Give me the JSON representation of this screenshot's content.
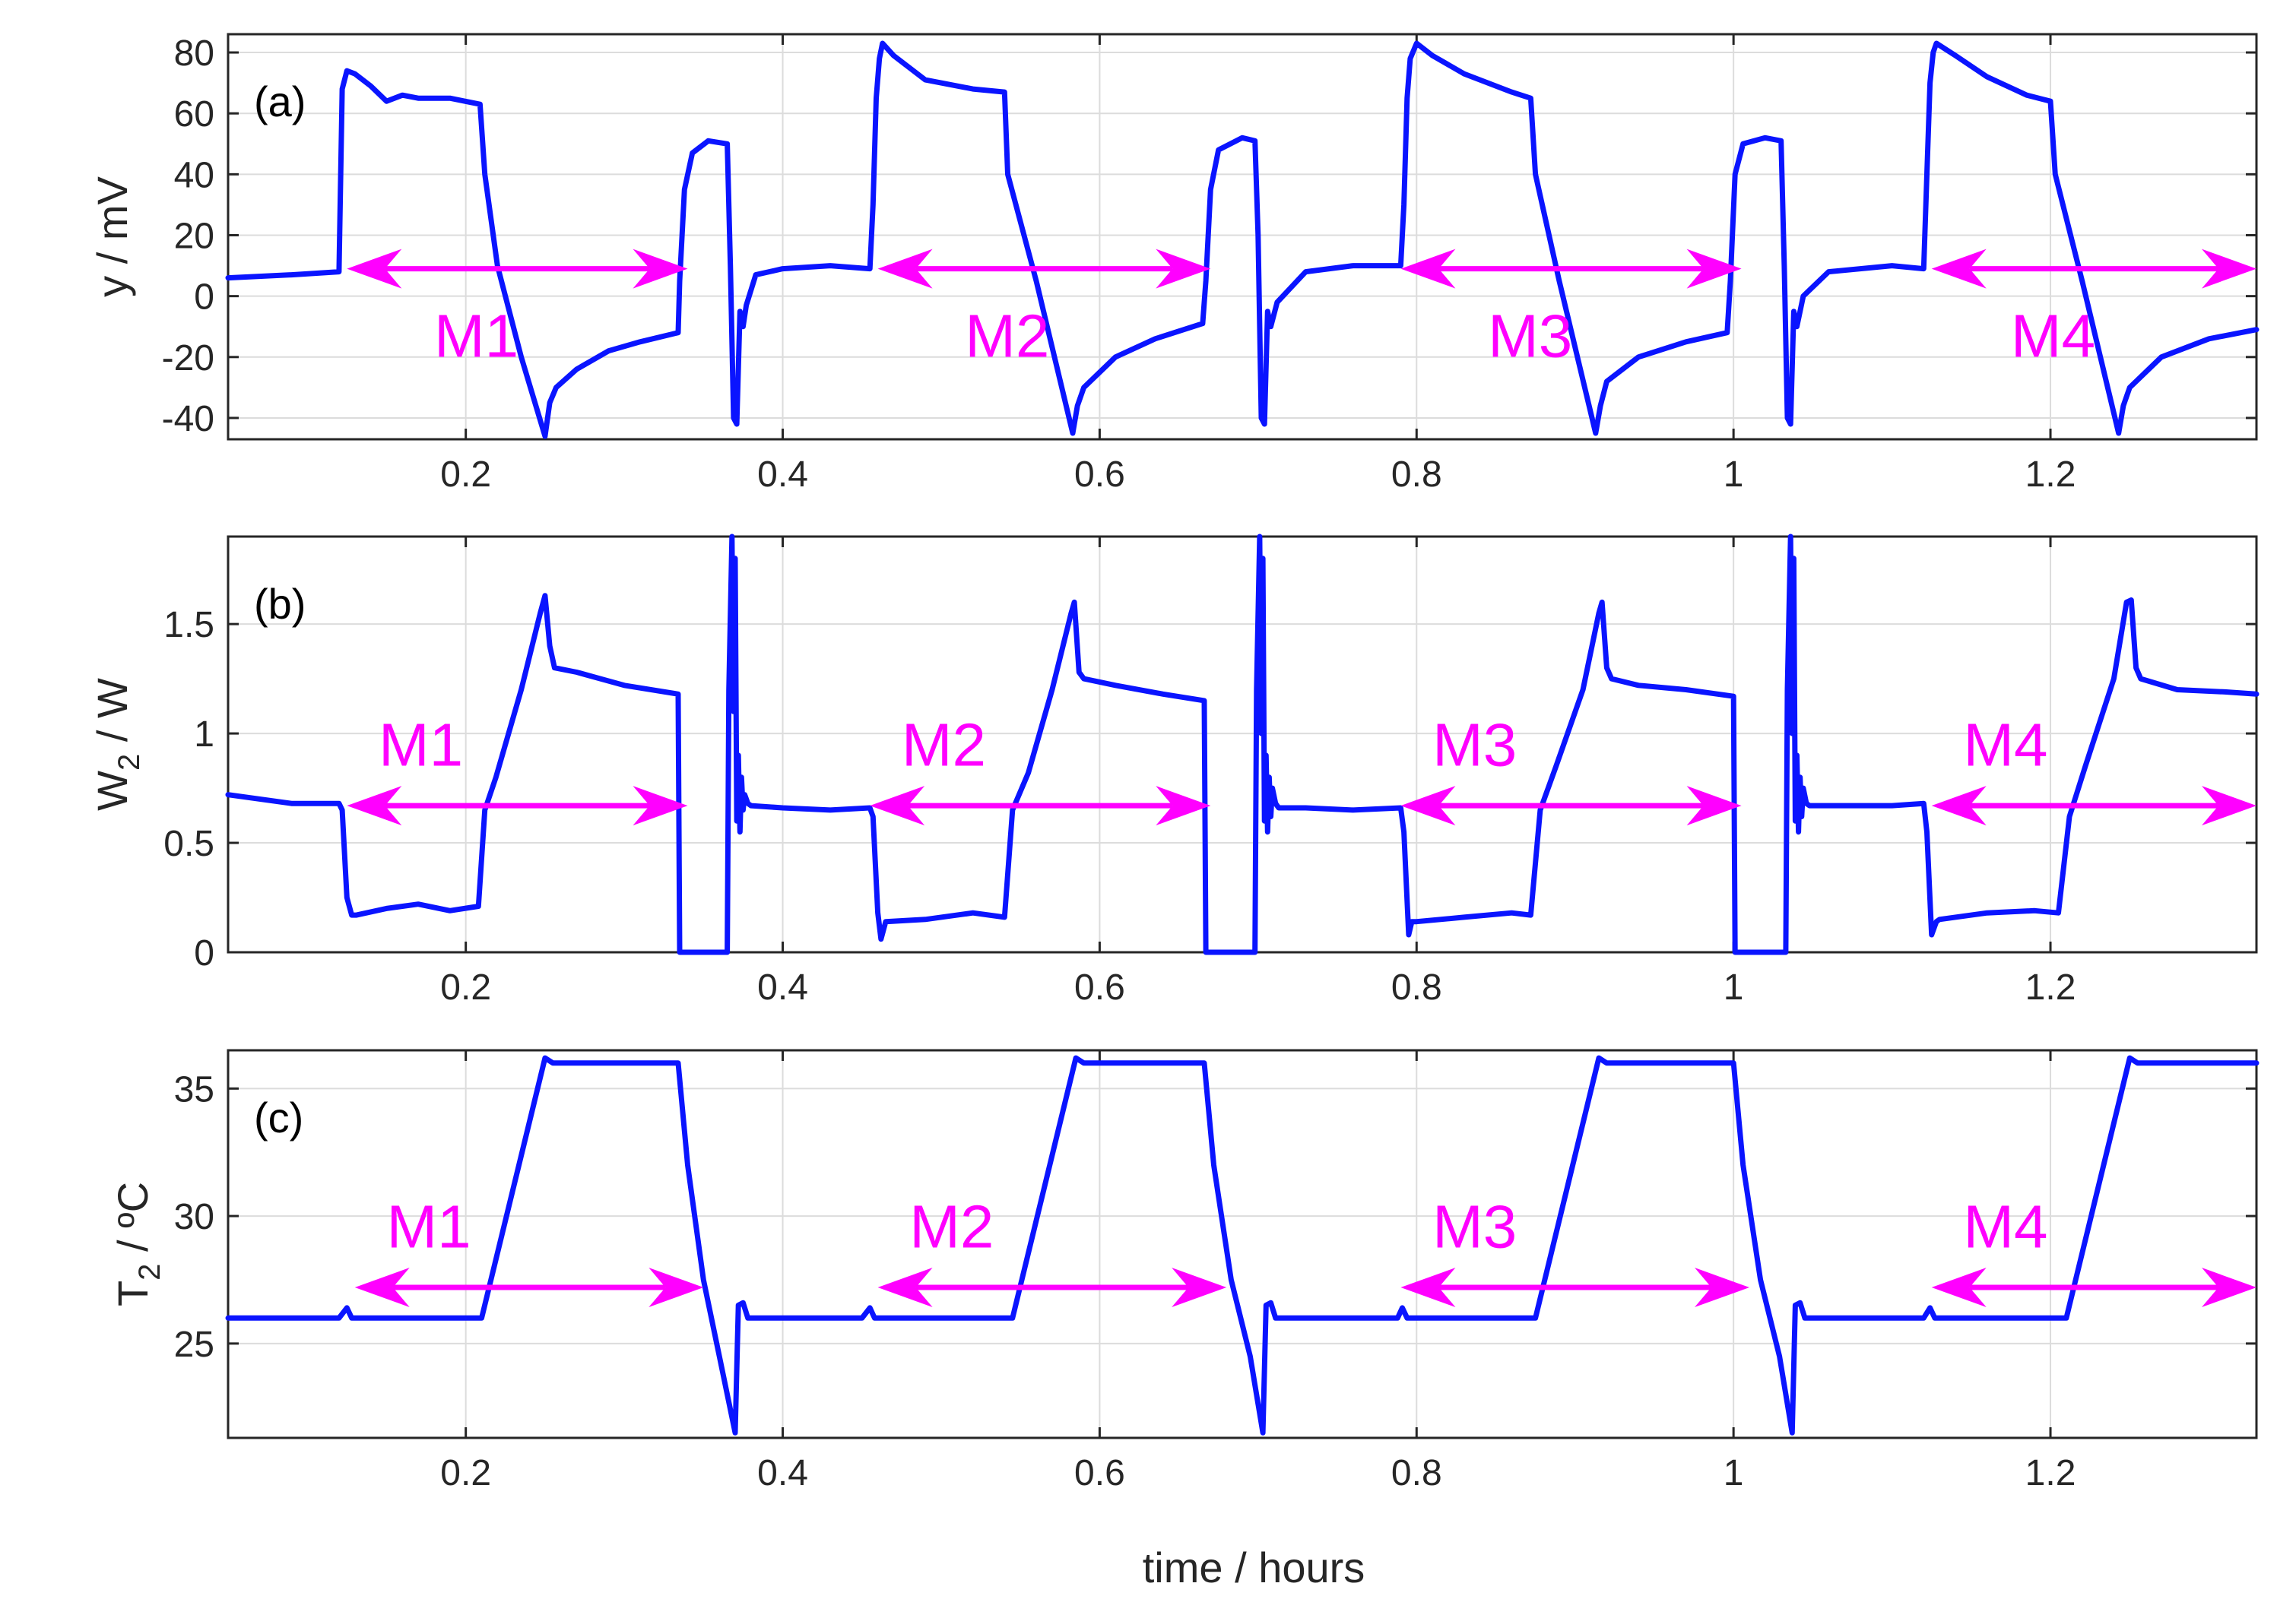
{
  "figure": {
    "xlabel": "time / hours",
    "colors": {
      "line": "#0a14ff",
      "annotation": "#ff00ff",
      "axis": "#262626",
      "grid": "#dcdcdc"
    }
  },
  "chart_data": [
    {
      "type": "line",
      "panel_tag": "(a)",
      "ylabel": "y / mV",
      "xlabel": "",
      "xlim": [
        0.05,
        1.33
      ],
      "ylim": [
        -47,
        86
      ],
      "xticks": [
        0.2,
        0.4,
        0.6,
        0.8,
        1.0,
        1.2
      ],
      "xtick_labels": [
        "0.2",
        "0.4",
        "0.6",
        "0.8",
        "1",
        "1.2"
      ],
      "yticks": [
        -40,
        -20,
        0,
        20,
        40,
        60,
        80
      ],
      "ytick_labels": [
        "-40",
        "-20",
        "0",
        "20",
        "40",
        "60",
        "80"
      ],
      "grid": true,
      "series": [
        {
          "x": [
            0.05,
            0.09,
            0.12,
            0.122,
            0.125,
            0.13,
            0.14,
            0.15,
            0.16,
            0.17,
            0.19,
            0.209,
            0.212,
            0.22,
            0.235,
            0.25,
            0.253,
            0.257,
            0.27,
            0.29,
            0.31,
            0.334,
            0.335,
            0.338,
            0.343,
            0.353,
            0.365,
            0.367,
            0.369,
            0.371,
            0.373,
            0.375,
            0.377,
            0.383,
            0.4,
            0.43,
            0.455,
            0.457,
            0.459,
            0.461,
            0.463,
            0.47,
            0.49,
            0.52,
            0.54,
            0.542,
            0.56,
            0.583,
            0.586,
            0.59,
            0.61,
            0.635,
            0.665,
            0.667,
            0.67,
            0.675,
            0.69,
            0.698,
            0.7,
            0.702,
            0.704,
            0.706,
            0.708,
            0.712,
            0.73,
            0.76,
            0.79,
            0.792,
            0.794,
            0.796,
            0.8,
            0.81,
            0.83,
            0.86,
            0.872,
            0.875,
            0.89,
            0.913,
            0.916,
            0.92,
            0.94,
            0.97,
            0.996,
            0.998,
            1.001,
            1.006,
            1.02,
            1.03,
            1.032,
            1.034,
            1.036,
            1.038,
            1.04,
            1.044,
            1.06,
            1.1,
            1.12,
            1.122,
            1.124,
            1.126,
            1.128,
            1.14,
            1.16,
            1.185,
            1.2,
            1.203,
            1.22,
            1.243,
            1.246,
            1.25,
            1.27,
            1.3,
            1.33
          ],
          "y": [
            6,
            7,
            8,
            68,
            74,
            73,
            69,
            64,
            66,
            65,
            65,
            63,
            40,
            10,
            -20,
            -46,
            -35,
            -30,
            -24,
            -18,
            -15,
            -12,
            5,
            35,
            47,
            51,
            50,
            10,
            -40,
            -42,
            -5,
            -10,
            -3,
            7,
            9,
            10,
            9,
            30,
            65,
            78,
            83,
            79,
            71,
            68,
            67,
            40,
            5,
            -45,
            -36,
            -30,
            -20,
            -14,
            -9,
            5,
            35,
            48,
            52,
            51,
            20,
            -40,
            -42,
            -5,
            -10,
            -2,
            8,
            10,
            10,
            30,
            65,
            78,
            83,
            79,
            73,
            67,
            65,
            40,
            5,
            -45,
            -36,
            -28,
            -20,
            -15,
            -12,
            5,
            40,
            50,
            52,
            51,
            10,
            -40,
            -42,
            -5,
            -10,
            0,
            8,
            10,
            9,
            40,
            70,
            80,
            83,
            79,
            72,
            66,
            64,
            40,
            5,
            -45,
            -36,
            -30,
            -20,
            -14,
            -11
          ]
        }
      ],
      "annotations": [
        {
          "label": "M1",
          "x_start": 0.125,
          "x_end": 0.34,
          "y": 9,
          "label_x": 0.18,
          "label_y": -13
        },
        {
          "label": "M2",
          "x_start": 0.46,
          "x_end": 0.67,
          "y": 9,
          "label_x": 0.515,
          "label_y": -13
        },
        {
          "label": "M3",
          "x_start": 0.79,
          "x_end": 1.005,
          "y": 9,
          "label_x": 0.845,
          "label_y": -13
        },
        {
          "label": "M4",
          "x_start": 1.125,
          "x_end": 1.33,
          "y": 9,
          "label_x": 1.175,
          "label_y": -13
        }
      ]
    },
    {
      "type": "line",
      "panel_tag": "(b)",
      "ylabel": "W2 / W",
      "ylabel_main": "W",
      "ylabel_sub": "2",
      "ylabel_rest": " / W",
      "xlabel": "",
      "xlim": [
        0.05,
        1.33
      ],
      "ylim": [
        0,
        1.9
      ],
      "xticks": [
        0.2,
        0.4,
        0.6,
        0.8,
        1.0,
        1.2
      ],
      "xtick_labels": [
        "0.2",
        "0.4",
        "0.6",
        "0.8",
        "1",
        "1.2"
      ],
      "yticks": [
        0,
        0.5,
        1,
        1.5
      ],
      "ytick_labels": [
        "0",
        "0.5",
        "1",
        "1.5"
      ],
      "grid": true,
      "series": [
        {
          "x": [
            0.05,
            0.09,
            0.12,
            0.122,
            0.125,
            0.128,
            0.131,
            0.15,
            0.17,
            0.19,
            0.208,
            0.212,
            0.219,
            0.235,
            0.247,
            0.25,
            0.253,
            0.256,
            0.27,
            0.3,
            0.334,
            0.335,
            0.365,
            0.366,
            0.368,
            0.369,
            0.37,
            0.371,
            0.372,
            0.373,
            0.374,
            0.375,
            0.376,
            0.378,
            0.38,
            0.4,
            0.43,
            0.455,
            0.457,
            0.46,
            0.462,
            0.465,
            0.49,
            0.52,
            0.54,
            0.545,
            0.555,
            0.57,
            0.582,
            0.584,
            0.587,
            0.59,
            0.61,
            0.64,
            0.666,
            0.667,
            0.698,
            0.699,
            0.701,
            0.702,
            0.703,
            0.704,
            0.705,
            0.706,
            0.707,
            0.708,
            0.709,
            0.711,
            0.713,
            0.73,
            0.76,
            0.79,
            0.792,
            0.795,
            0.797,
            0.8,
            0.83,
            0.86,
            0.872,
            0.878,
            0.888,
            0.905,
            0.915,
            0.917,
            0.92,
            0.923,
            0.94,
            0.97,
            1.0,
            1.001,
            1.033,
            1.034,
            1.036,
            1.037,
            1.038,
            1.039,
            1.04,
            1.041,
            1.042,
            1.043,
            1.044,
            1.046,
            1.048,
            1.07,
            1.1,
            1.12,
            1.122,
            1.125,
            1.128,
            1.13,
            1.16,
            1.19,
            1.205,
            1.212,
            1.222,
            1.24,
            1.248,
            1.251,
            1.254,
            1.257,
            1.28,
            1.31,
            1.33
          ],
          "y": [
            0.72,
            0.68,
            0.68,
            0.65,
            0.25,
            0.17,
            0.17,
            0.2,
            0.22,
            0.19,
            0.21,
            0.65,
            0.8,
            1.2,
            1.55,
            1.63,
            1.4,
            1.3,
            1.28,
            1.22,
            1.18,
            0,
            0,
            1.2,
            1.9,
            1.1,
            1.8,
            0.6,
            0.9,
            0.55,
            0.8,
            0.65,
            0.72,
            0.68,
            0.67,
            0.66,
            0.65,
            0.66,
            0.62,
            0.18,
            0.06,
            0.14,
            0.15,
            0.18,
            0.16,
            0.65,
            0.82,
            1.2,
            1.55,
            1.6,
            1.28,
            1.25,
            1.22,
            1.18,
            1.15,
            0,
            0,
            1.2,
            1.9,
            1.0,
            1.8,
            0.6,
            0.9,
            0.55,
            0.8,
            0.62,
            0.75,
            0.68,
            0.66,
            0.66,
            0.65,
            0.66,
            0.55,
            0.08,
            0.14,
            0.14,
            0.16,
            0.18,
            0.17,
            0.65,
            0.85,
            1.2,
            1.55,
            1.6,
            1.3,
            1.25,
            1.22,
            1.2,
            1.17,
            0,
            0,
            1.2,
            1.9,
            1.0,
            1.8,
            0.6,
            0.9,
            0.55,
            0.8,
            0.62,
            0.75,
            0.68,
            0.67,
            0.67,
            0.67,
            0.68,
            0.55,
            0.08,
            0.14,
            0.15,
            0.18,
            0.19,
            0.18,
            0.62,
            0.85,
            1.25,
            1.6,
            1.61,
            1.3,
            1.25,
            1.2,
            1.19,
            1.18
          ]
        }
      ],
      "annotations": [
        {
          "label": "M1",
          "x_start": 0.125,
          "x_end": 0.34,
          "y": 0.67,
          "label_x": 0.145,
          "label_y": 0.95
        },
        {
          "label": "M2",
          "x_start": 0.455,
          "x_end": 0.67,
          "y": 0.67,
          "label_x": 0.475,
          "label_y": 0.95
        },
        {
          "label": "M3",
          "x_start": 0.79,
          "x_end": 1.005,
          "y": 0.67,
          "label_x": 0.81,
          "label_y": 0.95
        },
        {
          "label": "M4",
          "x_start": 1.125,
          "x_end": 1.33,
          "y": 0.67,
          "label_x": 1.145,
          "label_y": 0.95
        }
      ]
    },
    {
      "type": "line",
      "panel_tag": "(c)",
      "ylabel": "T2 / ºC",
      "ylabel_main": "T",
      "ylabel_sub": "2",
      "ylabel_rest": " / ºC",
      "xlabel": "time / hours",
      "xlim": [
        0.05,
        1.33
      ],
      "ylim": [
        21.3,
        36.5
      ],
      "xticks": [
        0.2,
        0.4,
        0.6,
        0.8,
        1.0,
        1.2
      ],
      "xtick_labels": [
        "0.2",
        "0.4",
        "0.6",
        "0.8",
        "1",
        "1.2"
      ],
      "yticks": [
        25,
        30,
        35
      ],
      "ytick_labels": [
        "25",
        "30",
        "35"
      ],
      "grid": true,
      "series": [
        {
          "x": [
            0.05,
            0.12,
            0.125,
            0.128,
            0.13,
            0.21,
            0.25,
            0.255,
            0.3,
            0.334,
            0.34,
            0.35,
            0.36,
            0.37,
            0.372,
            0.375,
            0.378,
            0.38,
            0.45,
            0.455,
            0.458,
            0.46,
            0.545,
            0.585,
            0.59,
            0.64,
            0.666,
            0.672,
            0.683,
            0.695,
            0.703,
            0.705,
            0.708,
            0.711,
            0.713,
            0.78,
            0.788,
            0.791,
            0.794,
            0.875,
            0.915,
            0.92,
            0.97,
            1.0,
            1.006,
            1.017,
            1.029,
            1.037,
            1.039,
            1.042,
            1.045,
            1.047,
            1.12,
            1.124,
            1.127,
            1.13,
            1.21,
            1.25,
            1.255,
            1.3,
            1.33
          ],
          "y": [
            26,
            26,
            26.4,
            26,
            26,
            26,
            36.2,
            36,
            36,
            36,
            32,
            27.5,
            24.5,
            21.5,
            26.5,
            26.6,
            26,
            26,
            26,
            26.4,
            26,
            26,
            26,
            36.2,
            36,
            36,
            36,
            32,
            27.5,
            24.5,
            21.5,
            26.5,
            26.6,
            26,
            26,
            26,
            26,
            26.4,
            26,
            26,
            36.2,
            36,
            36,
            36,
            32,
            27.5,
            24.5,
            21.5,
            26.5,
            26.6,
            26,
            26,
            26,
            26.4,
            26,
            26,
            26,
            36.2,
            36,
            36,
            36
          ]
        }
      ],
      "annotations": [
        {
          "label": "M1",
          "x_start": 0.13,
          "x_end": 0.35,
          "y": 27.2,
          "label_x": 0.15,
          "label_y": 29.6
        },
        {
          "label": "M2",
          "x_start": 0.46,
          "x_end": 0.68,
          "y": 27.2,
          "label_x": 0.48,
          "label_y": 29.6
        },
        {
          "label": "M3",
          "x_start": 0.79,
          "x_end": 1.01,
          "y": 27.2,
          "label_x": 0.81,
          "label_y": 29.6
        },
        {
          "label": "M4",
          "x_start": 1.125,
          "x_end": 1.33,
          "y": 27.2,
          "label_x": 1.145,
          "label_y": 29.6
        }
      ]
    }
  ]
}
